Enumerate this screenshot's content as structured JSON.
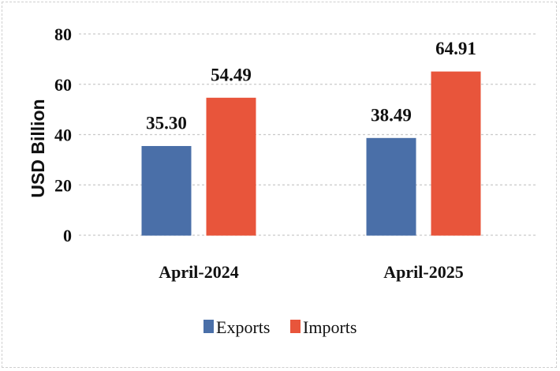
{
  "chart_data": {
    "type": "bar",
    "categories": [
      "April-2024",
      "April-2025"
    ],
    "series": [
      {
        "name": "Exports",
        "values": [
          35.3,
          38.49
        ],
        "labels": [
          "35.30",
          "38.49"
        ],
        "color": "#4a6fa8"
      },
      {
        "name": "Imports",
        "values": [
          54.49,
          64.91
        ],
        "labels": [
          "54.49",
          "64.91"
        ],
        "color": "#e8553b"
      }
    ],
    "ylabel": "USD Billion",
    "ylim": [
      0,
      80
    ],
    "yticks": [
      "0",
      "20",
      "40",
      "60",
      "80"
    ],
    "grid": true,
    "legend": "bottom"
  }
}
